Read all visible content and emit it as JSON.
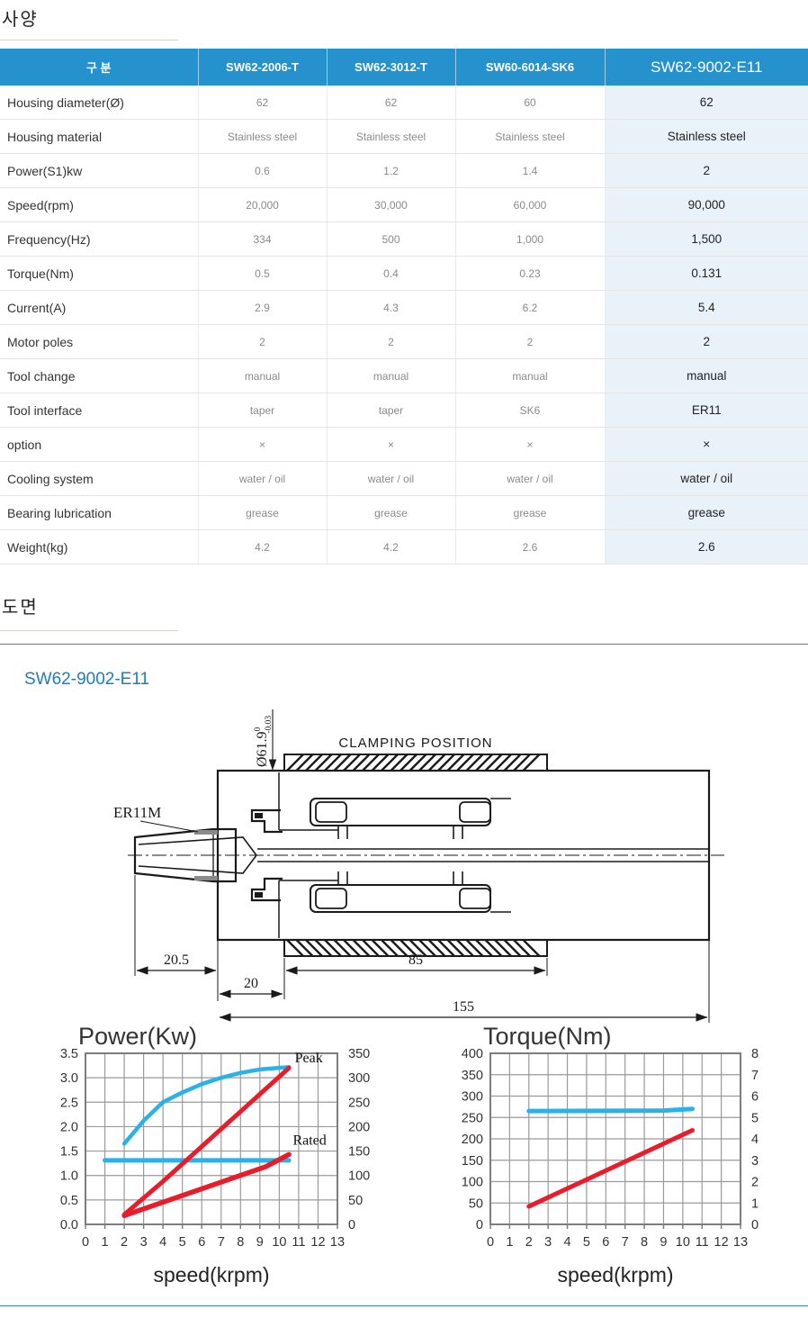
{
  "sections": {
    "spec_title": "사양",
    "drawing_title": "도면",
    "drawing_subtitle": "SW62-9002-E11"
  },
  "spec_table": {
    "header": [
      "구 분",
      "SW62-2006-T",
      "SW62-3012-T",
      "SW60-6014-SK6",
      "SW62-9002-E11"
    ],
    "rows": [
      {
        "label": "Housing diameter(Ø)",
        "values": [
          "62",
          "62",
          "60",
          "62"
        ]
      },
      {
        "label": "Housing material",
        "values": [
          "Stainless steel",
          "Stainless steel",
          "Stainless steel",
          "Stainless steel"
        ]
      },
      {
        "label": "Power(S1)kw",
        "values": [
          "0.6",
          "1.2",
          "1.4",
          "2"
        ]
      },
      {
        "label": "Speed(rpm)",
        "values": [
          "20,000",
          "30,000",
          "60,000",
          "90,000"
        ]
      },
      {
        "label": "Frequency(Hz)",
        "values": [
          "334",
          "500",
          "1,000",
          "1,500"
        ]
      },
      {
        "label": "Torque(Nm)",
        "values": [
          "0.5",
          "0.4",
          "0.23",
          "0.131"
        ]
      },
      {
        "label": "Current(A)",
        "values": [
          "2.9",
          "4.3",
          "6.2",
          "5.4"
        ]
      },
      {
        "label": "Motor poles",
        "values": [
          "2",
          "2",
          "2",
          "2"
        ]
      },
      {
        "label": "Tool change",
        "values": [
          "manual",
          "manual",
          "manual",
          "manual"
        ]
      },
      {
        "label": "Tool interface",
        "values": [
          "taper",
          "taper",
          "SK6",
          "ER11"
        ]
      },
      {
        "label": "option",
        "values": [
          "×",
          "×",
          "×",
          "×"
        ]
      },
      {
        "label": "Cooling system",
        "values": [
          "water / oil",
          "water / oil",
          "water / oil",
          "water / oil"
        ]
      },
      {
        "label": "Bearing lubrication",
        "values": [
          "grease",
          "grease",
          "grease",
          "grease"
        ]
      },
      {
        "label": "Weight(kg)",
        "values": [
          "4.2",
          "4.2",
          "2.6",
          "2.6"
        ]
      }
    ]
  },
  "drawing": {
    "labels": {
      "clamping": "CLAMPING POSITION",
      "collet": "ER11M",
      "diameter": "Ø61.9",
      "tol_upper": "0",
      "tol_lower": "-0.03",
      "dim_nose": "20.5",
      "dim_front": "20",
      "dim_clamp": "85",
      "dim_total": "155"
    }
  },
  "chart_data": [
    {
      "type": "line",
      "title": "Power(Kw)",
      "xlabel": "speed(krpm)",
      "xlim": [
        0,
        13
      ],
      "xtick_step": 1,
      "left_axis": {
        "min": 0,
        "max": 3.5,
        "step": 0.5,
        "decimals": 1
      },
      "right_axis": {
        "min": 0,
        "max": 350,
        "step": 50
      },
      "grid": true,
      "legend_position": "none",
      "series": [
        {
          "name": "peak-power-cyan",
          "color": "cyan",
          "width": 4.5,
          "points": [
            [
              2,
              1.65
            ],
            [
              3,
              2.12
            ],
            [
              4,
              2.5
            ],
            [
              5,
              2.7
            ],
            [
              6,
              2.87
            ],
            [
              7,
              3.0
            ],
            [
              8,
              3.1
            ],
            [
              9,
              3.17
            ],
            [
              10.5,
              3.22
            ]
          ]
        },
        {
          "name": "rated-power-cyan",
          "color": "cyan",
          "width": 5,
          "points": [
            [
              1,
              1.31
            ],
            [
              10.5,
              1.31
            ]
          ]
        },
        {
          "name": "peak-red",
          "color": "red",
          "width": 5,
          "points": [
            [
              2,
              0.2
            ],
            [
              4,
              0.88
            ],
            [
              10.5,
              3.2
            ]
          ]
        },
        {
          "name": "rated-red",
          "color": "red",
          "width": 5.5,
          "points": [
            [
              2,
              0.18
            ],
            [
              9.3,
              1.18
            ],
            [
              10.5,
              1.43
            ]
          ]
        }
      ],
      "annotations": [
        {
          "text": "Peak",
          "x": 10.8,
          "y": 3.32
        },
        {
          "text": "Rated",
          "x": 10.7,
          "y": 1.63
        }
      ]
    },
    {
      "type": "line",
      "title": "Torque(Nm)",
      "xlabel": "speed(krpm)",
      "xlim": [
        0,
        13
      ],
      "xtick_step": 1,
      "left_axis": {
        "min": 0,
        "max": 400,
        "step": 50,
        "decimals": 0
      },
      "right_axis": {
        "min": 0,
        "max": 8,
        "step": 1
      },
      "grid": true,
      "legend_position": "none",
      "series": [
        {
          "name": "peak-torque-cyan",
          "color": "cyan",
          "width": 5,
          "points": [
            [
              2,
              265
            ],
            [
              9,
              266
            ],
            [
              10.5,
              270
            ]
          ]
        },
        {
          "name": "rated-torque-red",
          "color": "red",
          "width": 5,
          "points": [
            [
              2,
              42
            ],
            [
              10.5,
              220
            ]
          ]
        }
      ],
      "annotations": []
    }
  ],
  "colors": {
    "header_blue": "#2591cd",
    "highlight_bg": "#e9f1f9",
    "rule_gray": "#d8d4cb",
    "rule_blue": "#3886b3",
    "subtitle_blue": "#1c7dbe",
    "chart_cyan": "#29b1e8",
    "chart_red": "#e91c2c",
    "grid_gray": "#9a9a9a",
    "line_black": "#1a1a1a"
  }
}
